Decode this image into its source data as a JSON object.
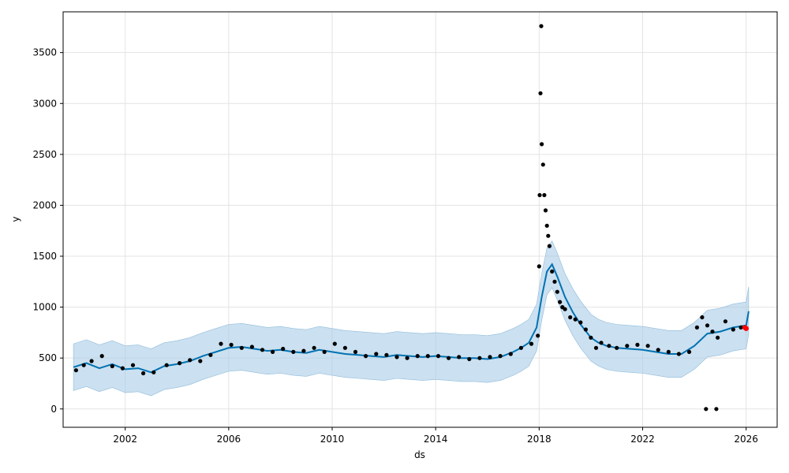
{
  "chart_data": {
    "type": "scatter",
    "title": "",
    "xlabel": "ds",
    "ylabel": "y",
    "xlim": [
      1999.6,
      2027.2
    ],
    "ylim": [
      -180,
      3900
    ],
    "x_ticks": [
      2002,
      2006,
      2010,
      2014,
      2018,
      2022,
      2026
    ],
    "x_tick_labels": [
      "2002",
      "2006",
      "2010",
      "2014",
      "2018",
      "2022",
      "2026"
    ],
    "y_ticks": [
      0,
      500,
      1000,
      1500,
      2000,
      2500,
      3000,
      3500
    ],
    "y_tick_labels": [
      "0",
      "500",
      "1000",
      "1500",
      "2000",
      "2500",
      "3000",
      "3500"
    ],
    "grid": true,
    "colors": {
      "observed": "#000000",
      "forecast": "#0072B2",
      "interval": "#a9cce6",
      "highlight": "#ff0000"
    },
    "series": [
      {
        "kind": "forecast",
        "x": [
          2000.0,
          2000.5,
          2001.0,
          2001.5,
          2002.0,
          2002.5,
          2003.0,
          2003.5,
          2004.0,
          2004.5,
          2005.0,
          2005.5,
          2006.0,
          2006.5,
          2007.0,
          2007.5,
          2008.0,
          2008.5,
          2009.0,
          2009.5,
          2010.0,
          2010.5,
          2011.0,
          2011.5,
          2012.0,
          2012.5,
          2013.0,
          2013.5,
          2014.0,
          2014.5,
          2015.0,
          2015.5,
          2016.0,
          2016.5,
          2017.0,
          2017.3,
          2017.6,
          2017.9,
          2018.1,
          2018.3,
          2018.5,
          2018.7,
          2019.0,
          2019.3,
          2019.6,
          2020.0,
          2020.3,
          2020.6,
          2021.0,
          2021.5,
          2022.0,
          2022.5,
          2023.0,
          2023.5,
          2024.0,
          2024.5,
          2025.0,
          2025.5,
          2026.0,
          2026.1
        ],
        "y": [
          410,
          450,
          400,
          440,
          390,
          400,
          360,
          420,
          440,
          470,
          520,
          560,
          600,
          610,
          590,
          570,
          580,
          560,
          550,
          580,
          560,
          540,
          530,
          520,
          510,
          530,
          520,
          510,
          520,
          510,
          500,
          500,
          490,
          510,
          560,
          600,
          650,
          800,
          1100,
          1350,
          1420,
          1300,
          1100,
          950,
          830,
          700,
          650,
          620,
          600,
          590,
          580,
          560,
          540,
          540,
          620,
          740,
          760,
          800,
          820,
          960
        ]
      },
      {
        "kind": "interval",
        "x": [
          2000.0,
          2000.5,
          2001.0,
          2001.5,
          2002.0,
          2002.5,
          2003.0,
          2003.5,
          2004.0,
          2004.5,
          2005.0,
          2005.5,
          2006.0,
          2006.5,
          2007.0,
          2007.5,
          2008.0,
          2008.5,
          2009.0,
          2009.5,
          2010.0,
          2010.5,
          2011.0,
          2011.5,
          2012.0,
          2012.5,
          2013.0,
          2013.5,
          2014.0,
          2014.5,
          2015.0,
          2015.5,
          2016.0,
          2016.5,
          2017.0,
          2017.3,
          2017.6,
          2017.9,
          2018.1,
          2018.3,
          2018.5,
          2018.7,
          2019.0,
          2019.3,
          2019.6,
          2020.0,
          2020.3,
          2020.6,
          2021.0,
          2021.5,
          2022.0,
          2022.5,
          2023.0,
          2023.5,
          2024.0,
          2024.5,
          2025.0,
          2025.5,
          2026.0,
          2026.1
        ],
        "y_upper": [
          640,
          680,
          630,
          670,
          620,
          630,
          590,
          650,
          670,
          700,
          750,
          790,
          830,
          840,
          820,
          800,
          810,
          790,
          780,
          810,
          790,
          770,
          760,
          750,
          740,
          760,
          750,
          740,
          750,
          740,
          730,
          730,
          720,
          740,
          790,
          830,
          880,
          1030,
          1330,
          1580,
          1650,
          1530,
          1330,
          1180,
          1060,
          930,
          880,
          850,
          830,
          820,
          810,
          790,
          770,
          770,
          850,
          970,
          990,
          1030,
          1050,
          1200
        ],
        "y_lower": [
          180,
          220,
          170,
          210,
          160,
          170,
          130,
          190,
          210,
          240,
          290,
          330,
          370,
          380,
          360,
          340,
          350,
          330,
          320,
          350,
          330,
          310,
          300,
          290,
          280,
          300,
          290,
          280,
          290,
          280,
          270,
          270,
          260,
          280,
          330,
          370,
          420,
          570,
          870,
          1120,
          1190,
          1070,
          870,
          720,
          600,
          470,
          420,
          390,
          370,
          360,
          350,
          330,
          310,
          310,
          390,
          510,
          530,
          570,
          590,
          730
        ]
      },
      {
        "kind": "observed",
        "x": [
          2000.1,
          2000.4,
          2000.7,
          2001.1,
          2001.5,
          2001.9,
          2002.3,
          2002.7,
          2003.1,
          2003.6,
          2004.1,
          2004.5,
          2004.9,
          2005.3,
          2005.7,
          2006.1,
          2006.5,
          2006.9,
          2007.3,
          2007.7,
          2008.1,
          2008.5,
          2008.9,
          2009.3,
          2009.7,
          2010.1,
          2010.5,
          2010.9,
          2011.3,
          2011.7,
          2012.1,
          2012.5,
          2012.9,
          2013.3,
          2013.7,
          2014.1,
          2014.5,
          2014.9,
          2015.3,
          2015.7,
          2016.1,
          2016.5,
          2016.9,
          2017.3,
          2017.7,
          2017.95,
          2018.0,
          2018.02,
          2018.05,
          2018.08,
          2018.1,
          2018.15,
          2018.2,
          2018.25,
          2018.3,
          2018.35,
          2018.4,
          2018.5,
          2018.6,
          2018.7,
          2018.8,
          2018.9,
          2019.0,
          2019.2,
          2019.4,
          2019.6,
          2019.8,
          2020.0,
          2020.2,
          2020.4,
          2020.7,
          2021.0,
          2021.4,
          2021.8,
          2022.2,
          2022.6,
          2023.0,
          2023.4,
          2023.8,
          2024.1,
          2024.3,
          2024.5,
          2024.7,
          2024.9,
          2025.2,
          2025.5,
          2025.8,
          2024.45,
          2024.85
        ],
        "y": [
          380,
          430,
          470,
          520,
          420,
          400,
          430,
          350,
          360,
          430,
          450,
          480,
          470,
          530,
          640,
          630,
          600,
          610,
          580,
          560,
          590,
          560,
          570,
          600,
          560,
          640,
          600,
          560,
          520,
          540,
          530,
          510,
          500,
          520,
          520,
          520,
          500,
          510,
          490,
          500,
          510,
          520,
          540,
          600,
          640,
          720,
          1400,
          2100,
          3100,
          3760,
          2600,
          2400,
          2100,
          1950,
          1800,
          1700,
          1600,
          1350,
          1250,
          1150,
          1050,
          1000,
          980,
          900,
          880,
          850,
          780,
          700,
          600,
          650,
          620,
          600,
          620,
          630,
          620,
          580,
          560,
          540,
          560,
          800,
          900,
          820,
          760,
          700,
          860,
          780,
          800,
          0,
          0
        ]
      },
      {
        "kind": "highlight",
        "x": [
          2025.95,
          2026.0
        ],
        "y": [
          800,
          790
        ]
      }
    ]
  }
}
